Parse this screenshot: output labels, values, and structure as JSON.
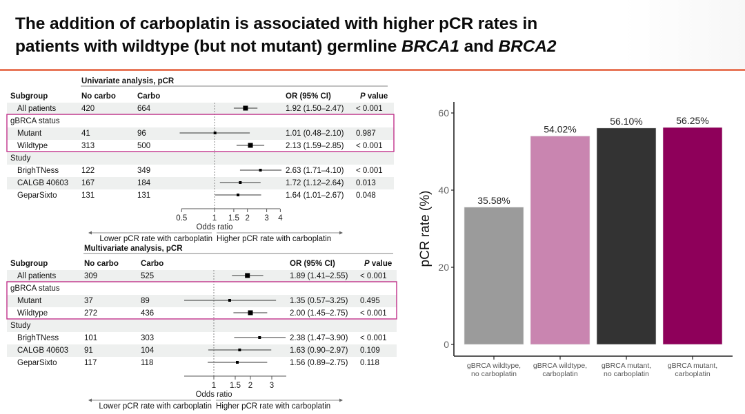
{
  "slide": {
    "title_line1": "The addition of carboplatin is associated with higher pCR rates in",
    "title_line2_prefix": "patients with wildtype (but not mutant) germline ",
    "title_gene1": "BRCA1",
    "title_and": " and ",
    "title_gene2": "BRCA2",
    "accent_color": "#e8785a",
    "highlight_box_color": "#c0318a"
  },
  "chart_data": [
    {
      "type": "forest",
      "title": "Univariate analysis, pCR",
      "columns": [
        "Subgroup",
        "No carbo",
        "Carbo",
        "OR (95% CI)",
        "P value"
      ],
      "xlabel": "Odds ratio",
      "xscale": "log",
      "xticks": [
        0.5,
        1,
        1.5,
        2,
        3,
        4
      ],
      "xtick_labels": [
        "0.5",
        "1",
        "1.5",
        "2",
        "3",
        "4"
      ],
      "xlim": [
        0.5,
        4
      ],
      "reference_line": 1,
      "direction_left": "Lower pCR rate with carboplatin",
      "direction_right": "Higher pCR rate with carboplatin",
      "highlighted_group": "gBRCA status",
      "rows": [
        {
          "label": "All patients",
          "indent": true,
          "no_carbo": "420",
          "carbo": "664",
          "or": 1.92,
          "lo": 1.5,
          "hi": 2.47,
          "or_text": "1.92 (1.50–2.47)",
          "p": "< 0.001",
          "big": true
        },
        {
          "label": "gBRCA status",
          "indent": false,
          "header": true
        },
        {
          "label": "Mutant",
          "indent": true,
          "no_carbo": "41",
          "carbo": "96",
          "or": 1.01,
          "lo": 0.48,
          "hi": 2.1,
          "or_text": "1.01 (0.48–2.10)",
          "p": "0.987",
          "big": false
        },
        {
          "label": "Wildtype",
          "indent": true,
          "no_carbo": "313",
          "carbo": "500",
          "or": 2.13,
          "lo": 1.59,
          "hi": 2.85,
          "or_text": "2.13 (1.59–2.85)",
          "p": "< 0.001",
          "big": true
        },
        {
          "label": "Study",
          "indent": false,
          "header": true
        },
        {
          "label": "BrighTNess",
          "indent": true,
          "no_carbo": "122",
          "carbo": "349",
          "or": 2.63,
          "lo": 1.71,
          "hi": 4.1,
          "or_text": "2.63 (1.71–4.10)",
          "p": "< 0.001",
          "big": false
        },
        {
          "label": "CALGB 40603",
          "indent": true,
          "no_carbo": "167",
          "carbo": "184",
          "or": 1.72,
          "lo": 1.12,
          "hi": 2.64,
          "or_text": "1.72 (1.12–2.64)",
          "p": "0.013",
          "big": false
        },
        {
          "label": "GeparSixto",
          "indent": true,
          "no_carbo": "131",
          "carbo": "131",
          "or": 1.64,
          "lo": 1.01,
          "hi": 2.67,
          "or_text": "1.64 (1.01–2.67)",
          "p": "0.048",
          "big": false
        }
      ]
    },
    {
      "type": "forest",
      "title": "Multivariate analysis, pCR",
      "columns": [
        "Subgroup",
        "No carbo",
        "Carbo",
        "OR (95% CI)",
        "P value"
      ],
      "xlabel": "Odds ratio",
      "xscale": "log",
      "xticks": [
        1,
        1.5,
        2,
        3
      ],
      "xtick_labels": [
        "1",
        "1.5",
        "2",
        "3"
      ],
      "xlim": [
        0.57,
        3.9
      ],
      "reference_line": 1,
      "direction_left": "Lower pCR rate with carboplatin",
      "direction_right": "Higher pCR rate with carboplatin",
      "highlighted_group": "gBRCA status",
      "rows": [
        {
          "label": "All patients",
          "indent": true,
          "no_carbo": "309",
          "carbo": "525",
          "or": 1.89,
          "lo": 1.41,
          "hi": 2.55,
          "or_text": "1.89 (1.41–2.55)",
          "p": "< 0.001",
          "big": true
        },
        {
          "label": "gBRCA status",
          "indent": false,
          "header": true
        },
        {
          "label": "Mutant",
          "indent": true,
          "no_carbo": "37",
          "carbo": "89",
          "or": 1.35,
          "lo": 0.57,
          "hi": 3.25,
          "or_text": "1.35 (0.57–3.25)",
          "p": "0.495",
          "big": false
        },
        {
          "label": "Wildtype",
          "indent": true,
          "no_carbo": "272",
          "carbo": "436",
          "or": 2.0,
          "lo": 1.45,
          "hi": 2.75,
          "or_text": "2.00 (1.45–2.75)",
          "p": "< 0.001",
          "big": true
        },
        {
          "label": "Study",
          "indent": false,
          "header": true
        },
        {
          "label": "BrighTNess",
          "indent": true,
          "no_carbo": "101",
          "carbo": "303",
          "or": 2.38,
          "lo": 1.47,
          "hi": 3.9,
          "or_text": "2.38 (1.47–3.90)",
          "p": "< 0.001",
          "big": false
        },
        {
          "label": "CALGB 40603",
          "indent": true,
          "no_carbo": "91",
          "carbo": "104",
          "or": 1.63,
          "lo": 0.9,
          "hi": 2.97,
          "or_text": "1.63 (0.90–2.97)",
          "p": "0.109",
          "big": false
        },
        {
          "label": "GeparSixto",
          "indent": true,
          "no_carbo": "117",
          "carbo": "118",
          "or": 1.56,
          "lo": 0.89,
          "hi": 2.75,
          "or_text": "1.56 (0.89–2.75)",
          "p": "0.118",
          "big": false
        }
      ]
    },
    {
      "type": "bar",
      "title": "",
      "ylabel": "pCR rate (%)",
      "xlabel": "",
      "ylim": [
        0,
        62
      ],
      "yticks": [
        0,
        20,
        40,
        60
      ],
      "grid": false,
      "categories": [
        [
          "gBRCA wildtype,",
          "no carboplatin"
        ],
        [
          "gBRCA wildtype,",
          "carboplatin"
        ],
        [
          "gBRCA mutant,",
          "no carboplatin"
        ],
        [
          "gBRCA mutant,",
          "carboplatin"
        ]
      ],
      "values": [
        35.58,
        54.02,
        56.1,
        56.25
      ],
      "value_labels": [
        "35.58%",
        "54.02%",
        "56.10%",
        "56.25%"
      ],
      "colors": [
        "#9b9b9b",
        "#c985b0",
        "#333333",
        "#8e005a"
      ]
    }
  ]
}
